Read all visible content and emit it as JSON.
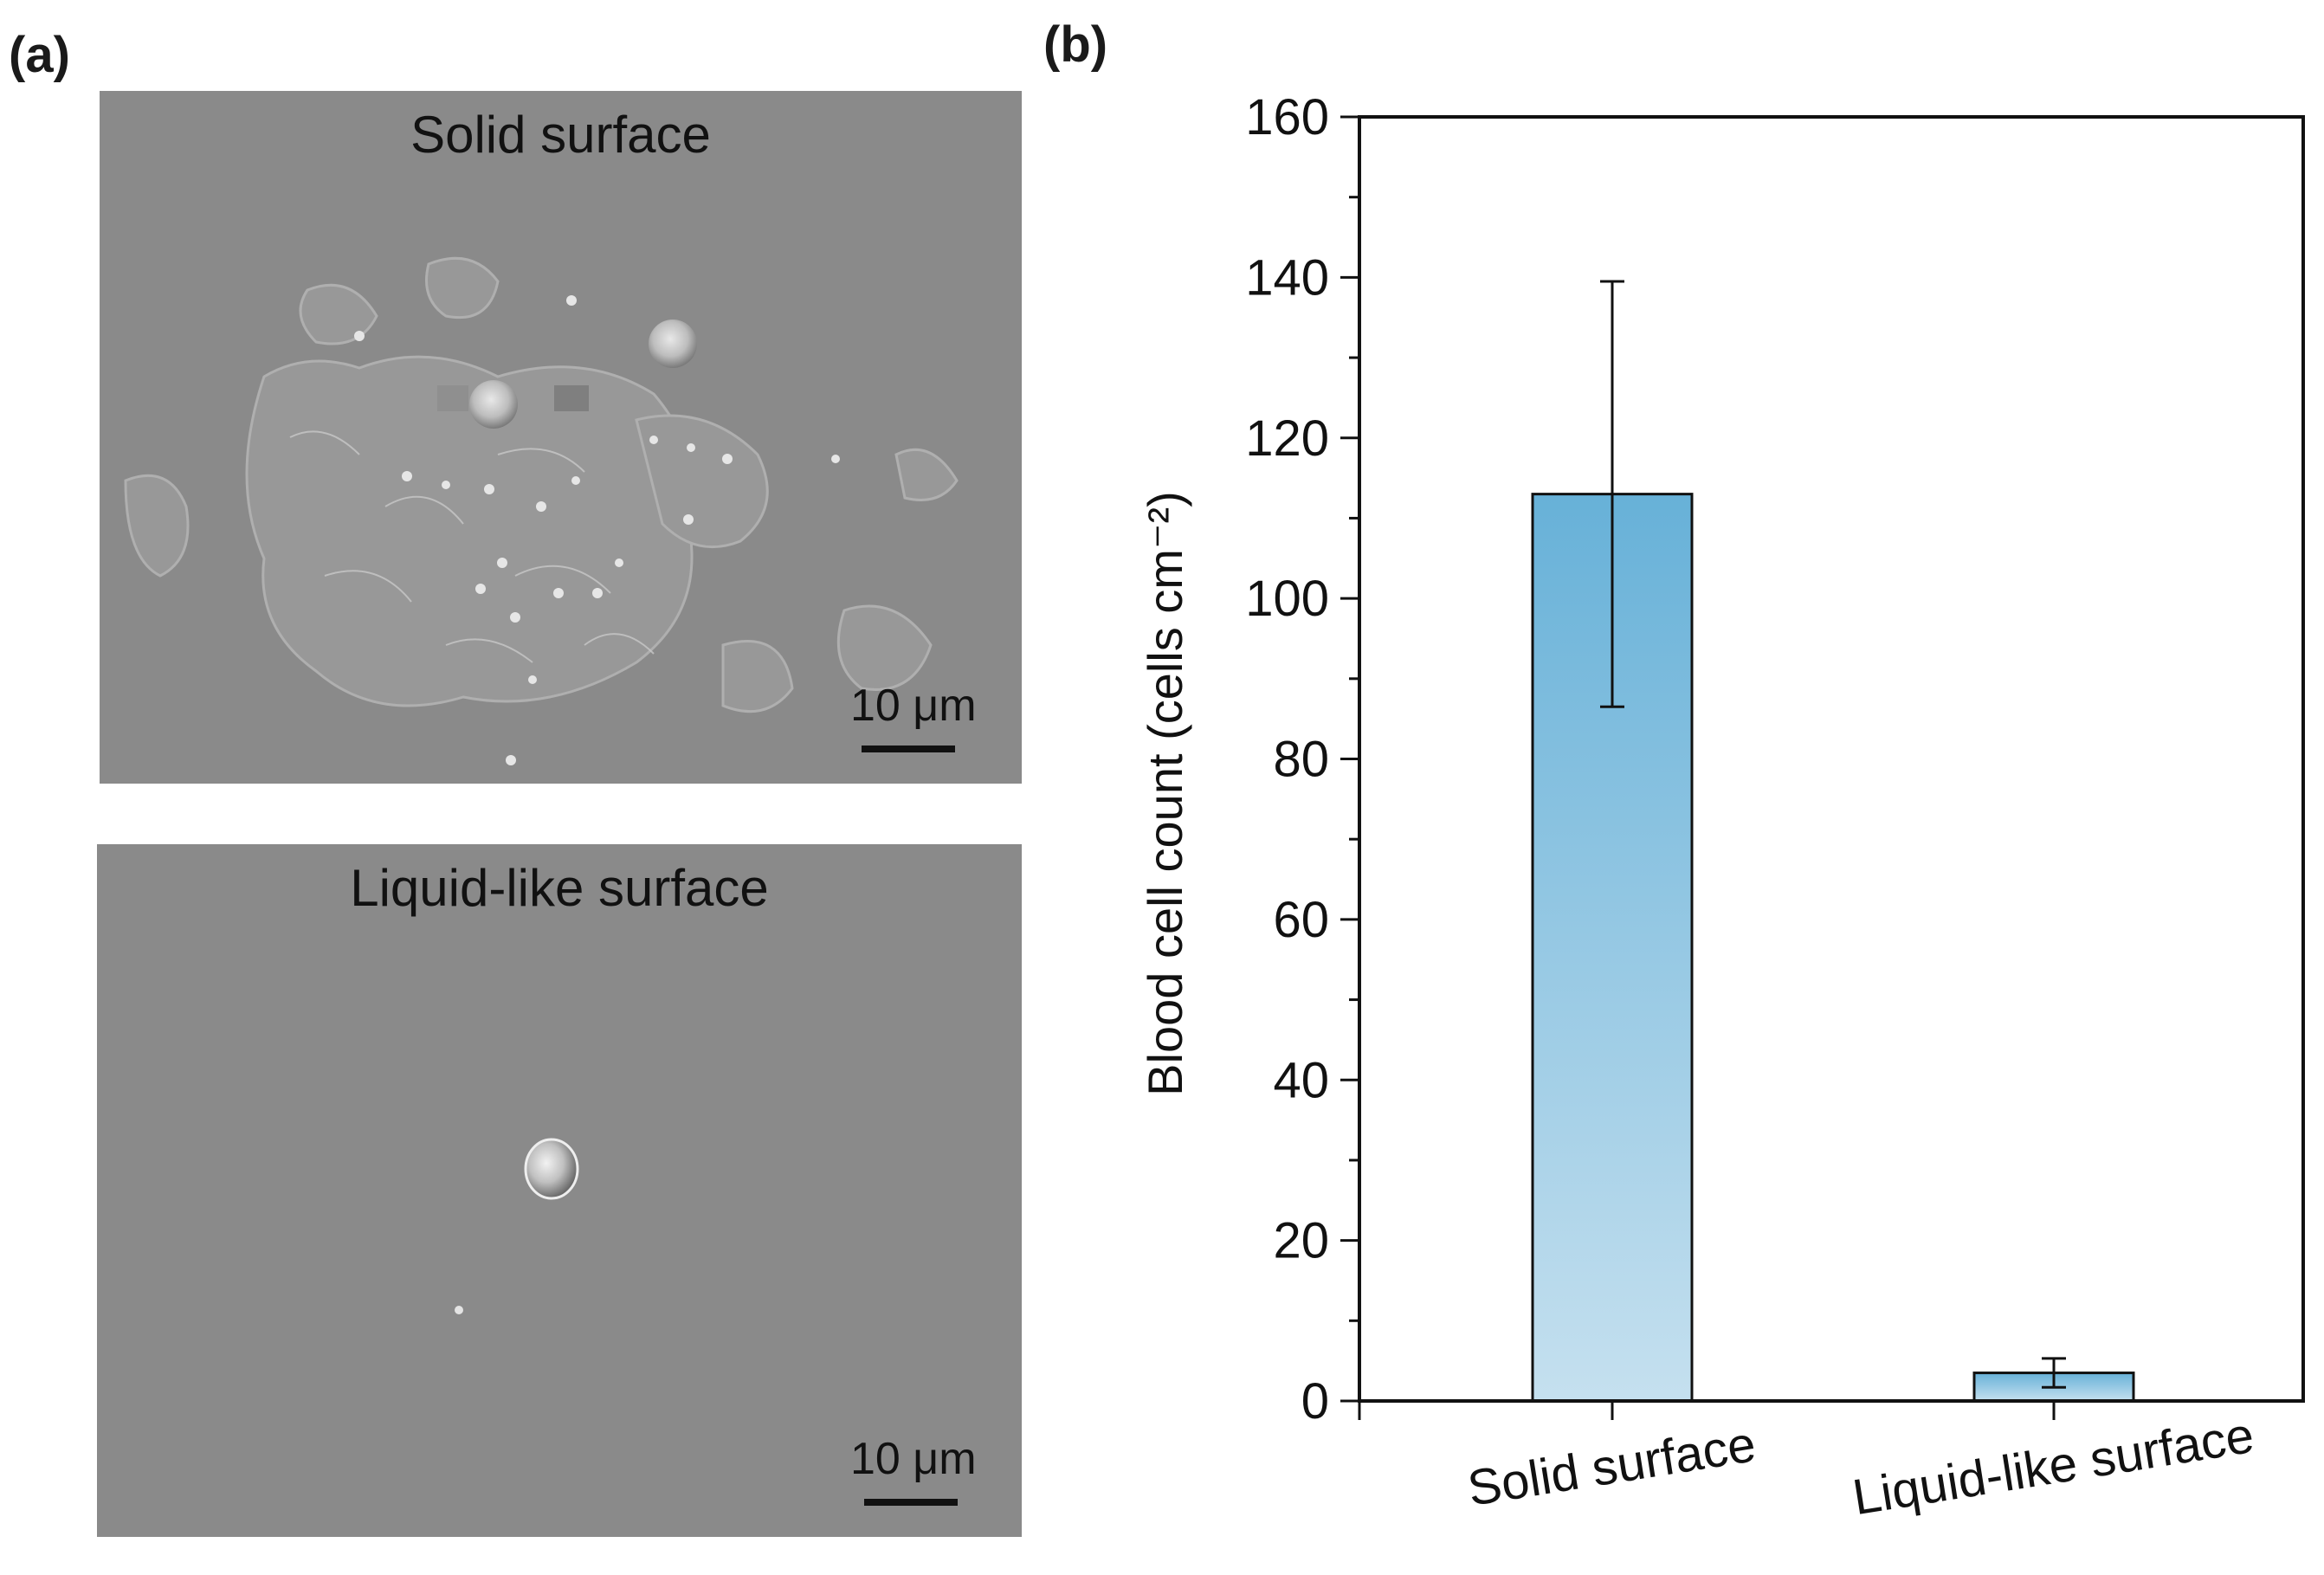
{
  "panel_a": {
    "label": "(a)",
    "images": [
      {
        "title": "Solid surface",
        "scale_label": "10 μm"
      },
      {
        "title": "Liquid-like surface",
        "scale_label": "10 μm"
      }
    ]
  },
  "panel_b": {
    "label": "(b)"
  },
  "colors": {
    "bar_top": "#67b1d8",
    "bar_bottom": "#c5e0ef",
    "sem_background": "#8a8a8a"
  },
  "chart_data": {
    "type": "bar",
    "categories": [
      "Solid surface",
      "Liquid-like surface"
    ],
    "values": [
      113,
      3.5
    ],
    "errors": [
      26.5,
      1.8
    ],
    "ylabel": "Blood cell count (cells cm⁻²)",
    "xlabel": "",
    "ylim": [
      0,
      160
    ],
    "yticks": [
      0,
      20,
      40,
      60,
      80,
      100,
      120,
      140,
      160
    ],
    "xtick_rotation": "slanted",
    "grid": false,
    "legend": "none"
  }
}
